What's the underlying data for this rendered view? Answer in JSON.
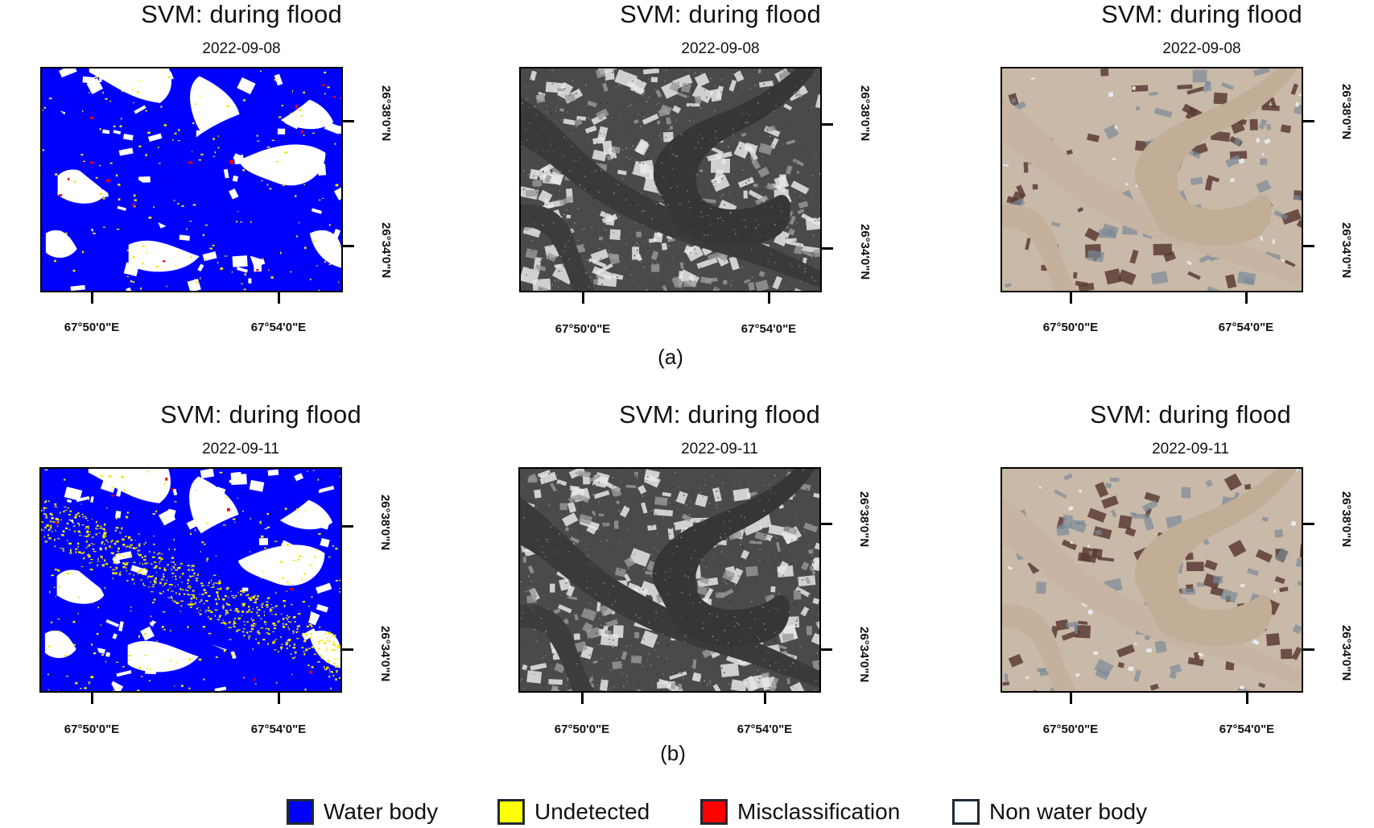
{
  "rows": [
    {
      "caption": "(a)",
      "panels": [
        {
          "title": "SVM: during flood",
          "date": "2022-09-08",
          "type": "classified",
          "undetected_density": "low"
        },
        {
          "title": "SVM: during flood",
          "date": "2022-09-08",
          "type": "sar"
        },
        {
          "title": "SVM: during flood",
          "date": "2022-09-08",
          "type": "rgb"
        }
      ]
    },
    {
      "caption": "(b)",
      "panels": [
        {
          "title": "SVM: during flood",
          "date": "2022-09-11",
          "type": "classified",
          "undetected_density": "high"
        },
        {
          "title": "SVM: during flood",
          "date": "2022-09-11",
          "type": "sar"
        },
        {
          "title": "SVM: during flood",
          "date": "2022-09-11",
          "type": "rgb"
        }
      ]
    }
  ],
  "axes": {
    "lon_labels": [
      "67°50'0\"E",
      "67°54'0\"E"
    ],
    "lat_labels": [
      "26°38'0\"N",
      "26°34'0\"N"
    ]
  },
  "legend": [
    {
      "label": "Water body",
      "color": "#0000ff"
    },
    {
      "label": "Undetected",
      "color": "#ffff00"
    },
    {
      "label": "Misclassification",
      "color": "#ff0000"
    },
    {
      "label": "Non water body",
      "color": "#ffffff"
    }
  ],
  "colors": {
    "water": "#0000ff",
    "undetected": "#f2e600",
    "misclassification": "#ff0000",
    "non_water": "#ffffff"
  }
}
